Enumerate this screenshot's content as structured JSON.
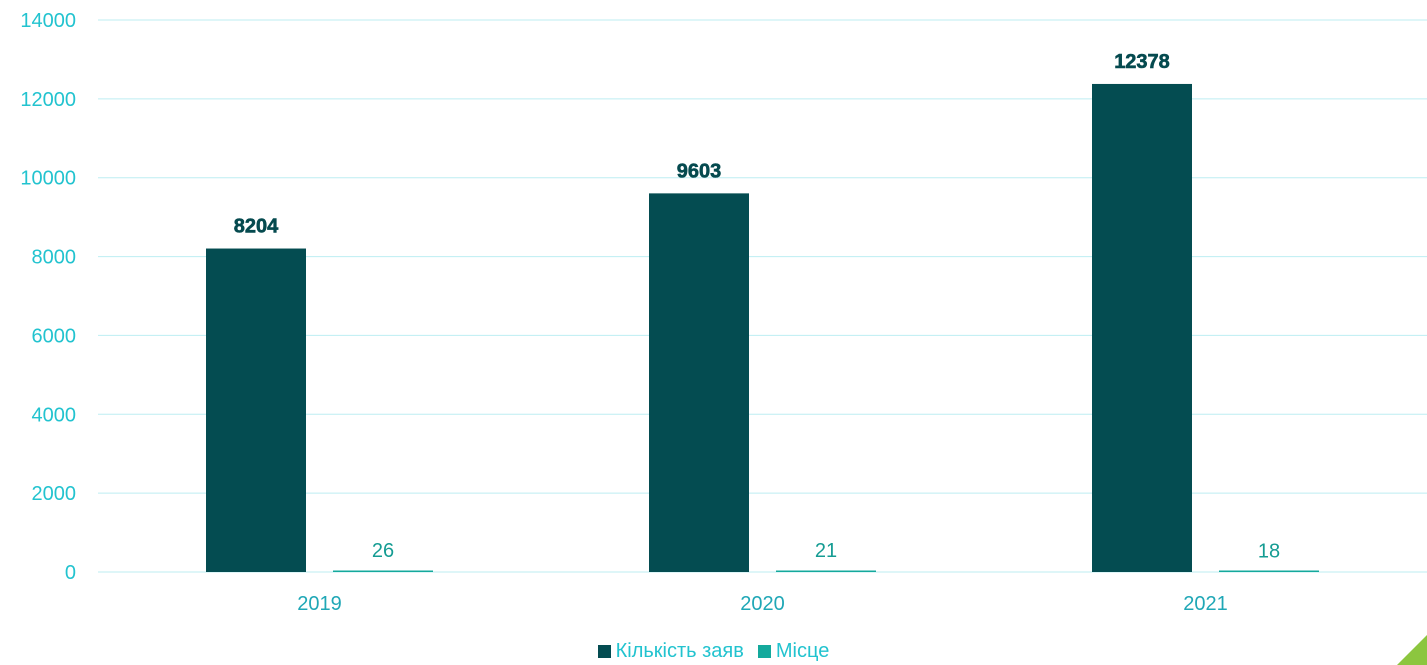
{
  "chart_data": {
    "type": "bar",
    "categories": [
      "2019",
      "2020",
      "2021"
    ],
    "series": [
      {
        "name": "Кількість заяв",
        "values": [
          8204,
          9603,
          12378
        ],
        "color": "#044c51"
      },
      {
        "name": "Місце",
        "values": [
          26,
          21,
          18
        ],
        "color": "#14a99c"
      }
    ],
    "ylim": [
      0,
      14000
    ],
    "yticks": [
      0,
      2000,
      4000,
      6000,
      8000,
      10000,
      12000,
      14000
    ],
    "grid": true,
    "legend_position": "bottom",
    "title": "",
    "xlabel": "",
    "ylabel": ""
  },
  "legend": {
    "items": [
      {
        "label": "Кількість заяв",
        "color": "#044c51"
      },
      {
        "label": "Місце",
        "color": "#14a99c"
      }
    ]
  },
  "decor": {
    "corner_color": "#8cc63f"
  }
}
